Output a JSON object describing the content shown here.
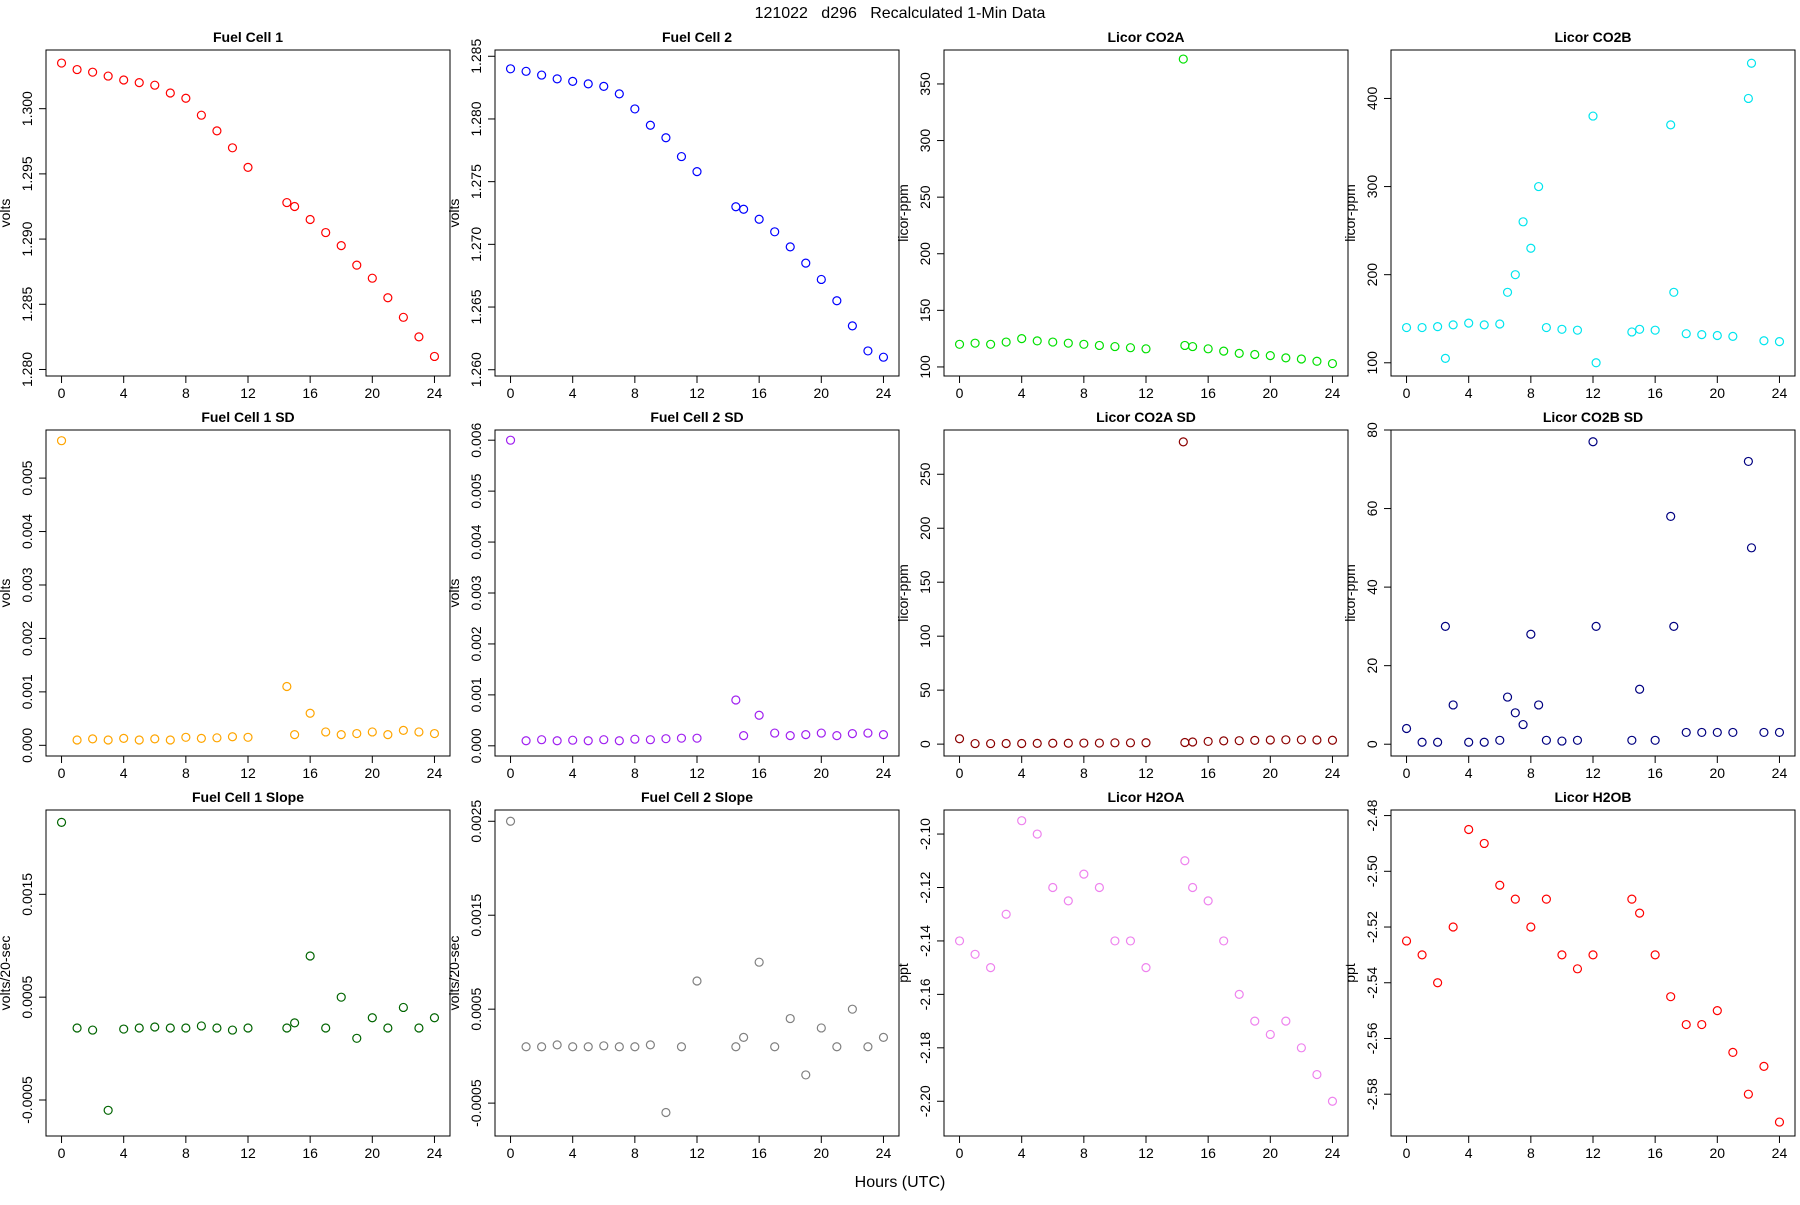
{
  "title": "121022   d296   Recalculated 1-Min Data",
  "xlabel": "Hours (UTC)",
  "chart_data": [
    {
      "type": "scatter",
      "title": "Fuel Cell 1",
      "ylabel": "volts",
      "color": "#ff0000",
      "x": [
        0,
        1,
        2,
        3,
        4,
        5,
        6,
        7,
        8,
        9,
        10,
        11,
        12,
        14.5,
        15,
        16,
        17,
        18,
        19,
        20,
        21,
        22,
        23,
        24
      ],
      "values": [
        1.3035,
        1.303,
        1.3028,
        1.3025,
        1.3022,
        1.302,
        1.3018,
        1.3012,
        1.3008,
        1.2995,
        1.2983,
        1.297,
        1.2955,
        1.2928,
        1.2925,
        1.2915,
        1.2905,
        1.2895,
        1.288,
        1.287,
        1.2855,
        1.284,
        1.2825,
        1.281
      ],
      "xlim": [
        -1,
        25
      ],
      "xticks": [
        0,
        4,
        8,
        12,
        16,
        20,
        24
      ],
      "ylim": [
        1.2795,
        1.3045
      ],
      "yticks": [
        {
          "value": 1.28,
          "label": "1.280"
        },
        {
          "value": 1.285,
          "label": "1.285"
        },
        {
          "value": 1.29,
          "label": "1.290"
        },
        {
          "value": 1.295,
          "label": "1.295"
        },
        {
          "value": 1.3,
          "label": "1.300"
        }
      ]
    },
    {
      "type": "scatter",
      "title": "Fuel Cell 2",
      "ylabel": "volts",
      "color": "#0000ff",
      "x": [
        0,
        1,
        2,
        3,
        4,
        5,
        6,
        7,
        8,
        9,
        10,
        11,
        12,
        14.5,
        15,
        16,
        17,
        18,
        19,
        20,
        21,
        22,
        23,
        24
      ],
      "values": [
        1.284,
        1.2838,
        1.2835,
        1.2832,
        1.283,
        1.2828,
        1.2826,
        1.282,
        1.2808,
        1.2795,
        1.2785,
        1.277,
        1.2758,
        1.273,
        1.2728,
        1.272,
        1.271,
        1.2698,
        1.2685,
        1.2672,
        1.2655,
        1.2635,
        1.2615,
        1.261
      ],
      "xlim": [
        -1,
        25
      ],
      "xticks": [
        0,
        4,
        8,
        12,
        16,
        20,
        24
      ],
      "ylim": [
        1.2595,
        1.2855
      ],
      "yticks": [
        {
          "value": 1.26,
          "label": "1.260"
        },
        {
          "value": 1.265,
          "label": "1.265"
        },
        {
          "value": 1.27,
          "label": "1.270"
        },
        {
          "value": 1.275,
          "label": "1.275"
        },
        {
          "value": 1.28,
          "label": "1.280"
        },
        {
          "value": 1.285,
          "label": "1.285"
        }
      ]
    },
    {
      "type": "scatter",
      "title": "Licor CO2A",
      "ylabel": "licor-ppm",
      "color": "#00e000",
      "x": [
        0,
        1,
        2,
        3,
        4,
        5,
        6,
        7,
        8,
        9,
        10,
        11,
        12,
        14.4,
        14.5,
        15,
        16,
        17,
        18,
        19,
        20,
        21,
        22,
        23,
        24
      ],
      "values": [
        120,
        121,
        120,
        122,
        125,
        123,
        122,
        121,
        120,
        119,
        118,
        117,
        116,
        372,
        119,
        118,
        116,
        114,
        112,
        111,
        110,
        108,
        107,
        105,
        103
      ],
      "xlim": [
        -1,
        25
      ],
      "xticks": [
        0,
        4,
        8,
        12,
        16,
        20,
        24
      ],
      "ylim": [
        92,
        380
      ],
      "yticks": [
        100,
        150,
        200,
        250,
        300,
        350
      ]
    },
    {
      "type": "scatter",
      "title": "Licor CO2B",
      "ylabel": "licor-ppm",
      "color": "#00e5ee",
      "x": [
        0,
        1,
        2,
        2.5,
        3,
        4,
        5,
        6,
        6.5,
        7,
        7.5,
        8,
        8.5,
        9,
        10,
        11,
        12,
        12.2,
        14.5,
        15,
        16,
        17,
        17.2,
        18,
        19,
        20,
        21,
        22,
        22.2,
        23,
        24
      ],
      "values": [
        140,
        140,
        141,
        105,
        143,
        145,
        143,
        144,
        180,
        200,
        260,
        230,
        300,
        140,
        138,
        137,
        380,
        100,
        135,
        138,
        137,
        370,
        180,
        133,
        132,
        131,
        130,
        400,
        440,
        125,
        124
      ],
      "xlim": [
        -1,
        25
      ],
      "xticks": [
        0,
        4,
        8,
        12,
        16,
        20,
        24
      ],
      "ylim": [
        85,
        455
      ],
      "yticks": [
        100,
        200,
        300,
        400
      ]
    },
    {
      "type": "scatter",
      "title": "Fuel Cell 1 SD",
      "ylabel": "volts",
      "color": "#ffa500",
      "x": [
        0,
        1,
        2,
        3,
        4,
        5,
        6,
        7,
        8,
        9,
        10,
        11,
        12,
        14.5,
        15,
        16,
        17,
        18,
        19,
        20,
        21,
        22,
        23,
        24
      ],
      "values": [
        0.0057,
        0.0001,
        0.00012,
        0.0001,
        0.00013,
        0.0001,
        0.00012,
        0.0001,
        0.00015,
        0.00013,
        0.00014,
        0.00016,
        0.00015,
        0.0011,
        0.0002,
        0.0006,
        0.00025,
        0.0002,
        0.00022,
        0.00025,
        0.0002,
        0.00028,
        0.00025,
        0.00022
      ],
      "xlim": [
        -1,
        25
      ],
      "xticks": [
        0,
        4,
        8,
        12,
        16,
        20,
        24
      ],
      "ylim": [
        -0.0002,
        0.0059
      ],
      "yticks": [
        {
          "value": 0,
          "label": "0.000"
        },
        {
          "value": 0.001,
          "label": "0.001"
        },
        {
          "value": 0.002,
          "label": "0.002"
        },
        {
          "value": 0.003,
          "label": "0.003"
        },
        {
          "value": 0.004,
          "label": "0.004"
        },
        {
          "value": 0.005,
          "label": "0.005"
        }
      ]
    },
    {
      "type": "scatter",
      "title": "Fuel Cell 2 SD",
      "ylabel": "volts",
      "color": "#a020f0",
      "x": [
        0,
        1,
        2,
        3,
        4,
        5,
        6,
        7,
        8,
        9,
        10,
        11,
        12,
        14.5,
        15,
        16,
        17,
        18,
        19,
        20,
        21,
        22,
        23,
        24
      ],
      "values": [
        0.006,
        0.0001,
        0.00012,
        0.0001,
        0.00011,
        0.0001,
        0.00012,
        0.0001,
        0.00013,
        0.00012,
        0.00014,
        0.00015,
        0.00015,
        0.0009,
        0.0002,
        0.0006,
        0.00025,
        0.0002,
        0.00022,
        0.00025,
        0.0002,
        0.00024,
        0.00025,
        0.00022
      ],
      "xlim": [
        -1,
        25
      ],
      "xticks": [
        0,
        4,
        8,
        12,
        16,
        20,
        24
      ],
      "ylim": [
        -0.0002,
        0.0062
      ],
      "yticks": [
        {
          "value": 0,
          "label": "0.000"
        },
        {
          "value": 0.001,
          "label": "0.001"
        },
        {
          "value": 0.002,
          "label": "0.002"
        },
        {
          "value": 0.003,
          "label": "0.003"
        },
        {
          "value": 0.004,
          "label": "0.004"
        },
        {
          "value": 0.005,
          "label": "0.005"
        },
        {
          "value": 0.006,
          "label": "0.006"
        }
      ]
    },
    {
      "type": "scatter",
      "title": "Licor CO2A SD",
      "ylabel": "licor-ppm",
      "color": "#8b0000",
      "x": [
        0,
        1,
        2,
        3,
        4,
        5,
        6,
        7,
        8,
        9,
        10,
        11,
        12,
        14.4,
        14.5,
        15,
        16,
        17,
        18,
        19,
        20,
        21,
        22,
        23,
        24
      ],
      "values": [
        5,
        0.5,
        0.5,
        0.6,
        0.6,
        0.7,
        0.8,
        0.8,
        1,
        1,
        1.2,
        1.2,
        1.3,
        280,
        1.5,
        2,
        2.5,
        3,
        3.2,
        3.5,
        3.8,
        4,
        4,
        3.8,
        3.6
      ],
      "xlim": [
        -1,
        25
      ],
      "xticks": [
        0,
        4,
        8,
        12,
        16,
        20,
        24
      ],
      "ylim": [
        -11,
        291
      ],
      "yticks": [
        0,
        50,
        100,
        150,
        200,
        250
      ]
    },
    {
      "type": "scatter",
      "title": "Licor CO2B SD",
      "ylabel": "licor-ppm",
      "color": "#000080",
      "x": [
        0,
        1,
        2,
        2.5,
        3,
        4,
        5,
        6,
        6.5,
        7,
        7.5,
        8,
        8.5,
        9,
        10,
        11,
        12,
        12.2,
        14.5,
        15,
        16,
        17,
        17.2,
        18,
        19,
        20,
        21,
        22,
        22.2,
        23,
        24
      ],
      "values": [
        4,
        0.5,
        0.5,
        30,
        10,
        0.5,
        0.5,
        1,
        12,
        8,
        5,
        28,
        10,
        1,
        0.8,
        1,
        77,
        30,
        1,
        14,
        1,
        58,
        30,
        3,
        3,
        3,
        3,
        72,
        50,
        3,
        3
      ],
      "xlim": [
        -1,
        25
      ],
      "xticks": [
        0,
        4,
        8,
        12,
        16,
        20,
        24
      ],
      "ylim": [
        -3,
        80
      ],
      "yticks": [
        0,
        20,
        40,
        60,
        80
      ]
    },
    {
      "type": "scatter",
      "title": "Fuel Cell 1 Slope",
      "ylabel": "volts/20-sec",
      "color": "#006400",
      "x": [
        0,
        1,
        2,
        3,
        4,
        5,
        6,
        7,
        8,
        9,
        10,
        11,
        12,
        14.5,
        15,
        16,
        17,
        18,
        19,
        20,
        21,
        22,
        23,
        24
      ],
      "values": [
        0.0022,
        0.0002,
        0.00018,
        -0.0006,
        0.00019,
        0.0002,
        0.00021,
        0.0002,
        0.0002,
        0.00022,
        0.0002,
        0.00018,
        0.0002,
        0.0002,
        0.00025,
        0.0009,
        0.0002,
        0.0005,
        0.0001,
        0.0003,
        0.0002,
        0.0004,
        0.0002,
        0.0003
      ],
      "xlim": [
        -1,
        25
      ],
      "xticks": [
        0,
        4,
        8,
        12,
        16,
        20,
        24
      ],
      "ylim": [
        -0.00085,
        0.00232
      ],
      "yticks": [
        -0.0005,
        0.0005,
        0.0015
      ]
    },
    {
      "type": "scatter",
      "title": "Fuel Cell 2 Slope",
      "ylabel": "volts/20-sec",
      "color": "#808080",
      "x": [
        0,
        1,
        2,
        3,
        4,
        5,
        6,
        7,
        8,
        9,
        10,
        11,
        12,
        14.5,
        15,
        16,
        17,
        18,
        19,
        20,
        21,
        22,
        23,
        24
      ],
      "values": [
        0.0025,
        0.0001,
        0.0001,
        0.00012,
        0.0001,
        0.0001,
        0.00011,
        0.0001,
        0.0001,
        0.00012,
        -0.0006,
        0.0001,
        0.0008,
        0.0001,
        0.0002,
        0.001,
        0.0001,
        0.0004,
        -0.0002,
        0.0003,
        0.0001,
        0.0005,
        0.0001,
        0.0002
      ],
      "xlim": [
        -1,
        25
      ],
      "xticks": [
        0,
        4,
        8,
        12,
        16,
        20,
        24
      ],
      "ylim": [
        -0.00085,
        0.00262
      ],
      "yticks": [
        -0.0005,
        0.0005,
        0.0015,
        0.0025
      ]
    },
    {
      "type": "scatter",
      "title": "Licor H2OA",
      "ylabel": "ppt",
      "color": "#ee82ee",
      "x": [
        0,
        1,
        2,
        3,
        4,
        5,
        6,
        7,
        8,
        9,
        10,
        11,
        12,
        14.5,
        15,
        16,
        17,
        18,
        19,
        20,
        21,
        22,
        23,
        24
      ],
      "values": [
        -2.14,
        -2.145,
        -2.15,
        -2.13,
        -2.095,
        -2.1,
        -2.12,
        -2.125,
        -2.115,
        -2.12,
        -2.14,
        -2.14,
        -2.15,
        -2.11,
        -2.12,
        -2.125,
        -2.14,
        -2.16,
        -2.17,
        -2.175,
        -2.17,
        -2.18,
        -2.19,
        -2.2
      ],
      "xlim": [
        -1,
        25
      ],
      "xticks": [
        0,
        4,
        8,
        12,
        16,
        20,
        24
      ],
      "ylim": [
        -2.213,
        -2.091
      ],
      "yticks": [
        {
          "value": -2.1,
          "label": "-2.10"
        },
        {
          "value": -2.12,
          "label": "-2.12"
        },
        {
          "value": -2.14,
          "label": "-2.14"
        },
        {
          "value": -2.16,
          "label": "-2.16"
        },
        {
          "value": -2.18,
          "label": "-2.18"
        },
        {
          "value": -2.2,
          "label": "-2.20"
        }
      ]
    },
    {
      "type": "scatter",
      "title": "Licor H2OB",
      "ylabel": "ppt",
      "color": "#ff0000",
      "x": [
        0,
        1,
        2,
        3,
        4,
        5,
        6,
        7,
        8,
        9,
        10,
        11,
        12,
        14.5,
        15,
        16,
        17,
        18,
        19,
        20,
        21,
        22,
        23,
        24
      ],
      "values": [
        -2.525,
        -2.53,
        -2.54,
        -2.52,
        -2.485,
        -2.49,
        -2.505,
        -2.51,
        -2.52,
        -2.51,
        -2.53,
        -2.535,
        -2.53,
        -2.51,
        -2.515,
        -2.53,
        -2.545,
        -2.555,
        -2.555,
        -2.55,
        -2.565,
        -2.58,
        -2.57,
        -2.59
      ],
      "xlim": [
        -1,
        25
      ],
      "xticks": [
        0,
        4,
        8,
        12,
        16,
        20,
        24
      ],
      "ylim": [
        -2.595,
        -2.478
      ],
      "yticks": [
        {
          "value": -2.48,
          "label": "-2.48"
        },
        {
          "value": -2.5,
          "label": "-2.50"
        },
        {
          "value": -2.52,
          "label": "-2.52"
        },
        {
          "value": -2.54,
          "label": "-2.54"
        },
        {
          "value": -2.56,
          "label": "-2.56"
        },
        {
          "value": -2.58,
          "label": "-2.58"
        }
      ]
    }
  ]
}
